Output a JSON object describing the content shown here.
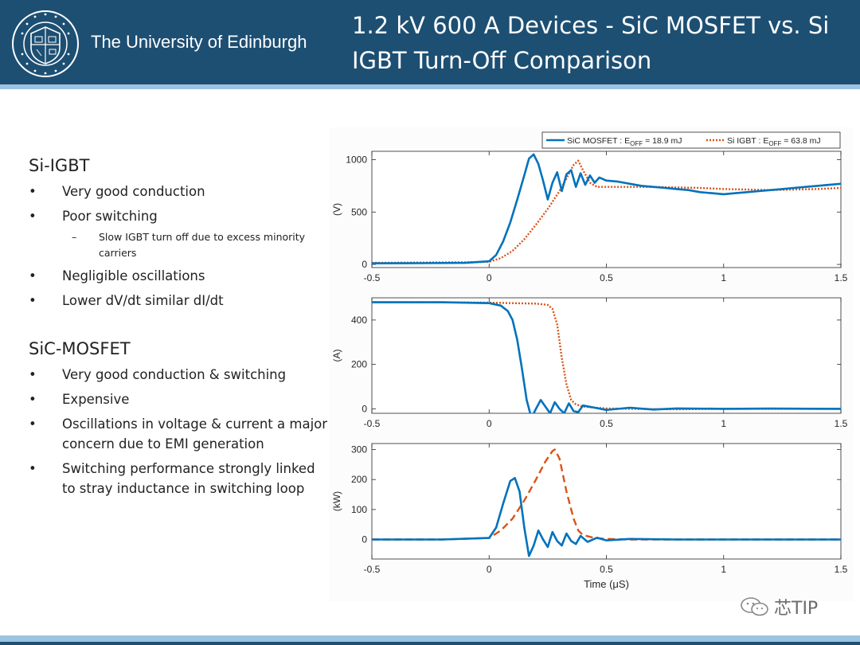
{
  "header": {
    "university": "The University of Edinburgh",
    "title": "1.2 kV 600 A Devices - SiC MOSFET vs. Si IGBT Turn-Off Comparison",
    "logo_icon": "university-crest-icon"
  },
  "left": {
    "section1": {
      "heading": "Si-IGBT",
      "items": [
        {
          "text": "Very good conduction"
        },
        {
          "text": "Poor switching",
          "sub": "Slow IGBT turn off due to excess minority carriers"
        },
        {
          "text": "Negligible oscillations"
        },
        {
          "text": "Lower dV/dt similar dI/dt"
        }
      ]
    },
    "section2": {
      "heading": "SiC-MOSFET",
      "items": [
        {
          "text": "Very good conduction & switching"
        },
        {
          "text": "Expensive"
        },
        {
          "text": "Oscillations in voltage & current a major concern due to EMI generation"
        },
        {
          "text": "Switching performance strongly linked to stray inductance in switching loop"
        }
      ]
    },
    "bullet_char": "•",
    "dash_char": "–"
  },
  "watermark": "芯TIP",
  "colors": {
    "header": "#1d4f73",
    "stripe": "#9cc3e0",
    "sic": "#0072bd",
    "si": "#d95319"
  },
  "chart_data": [
    {
      "type": "line",
      "ylabel": "(V)",
      "xlim": [
        -0.5,
        1.5
      ],
      "ylim": [
        -30,
        1080
      ],
      "yticks": [
        0,
        500,
        1000
      ],
      "xticks": [
        -0.5,
        0,
        0.5,
        1,
        1.5
      ],
      "legend": {
        "placement": "top-right",
        "entries": [
          {
            "name": "SiC MOSFET : E",
            "sub": "OFF",
            "value": " = 18.9 mJ"
          },
          {
            "name": "Si IGBT : E",
            "sub": "OFF",
            "value": " = 63.8 mJ"
          }
        ]
      },
      "series": [
        {
          "name": "SiC MOSFET",
          "style": "solid",
          "x": [
            -0.5,
            -0.3,
            -0.1,
            0,
            0.03,
            0.06,
            0.09,
            0.12,
            0.15,
            0.17,
            0.19,
            0.21,
            0.23,
            0.25,
            0.27,
            0.29,
            0.31,
            0.33,
            0.35,
            0.37,
            0.39,
            0.41,
            0.43,
            0.45,
            0.47,
            0.5,
            0.55,
            0.6,
            0.65,
            0.7,
            0.75,
            0.8,
            0.85,
            0.9,
            0.95,
            1.0,
            1.05,
            1.1,
            1.15,
            1.2,
            1.25,
            1.3,
            1.35,
            1.4,
            1.45,
            1.5
          ],
          "y": [
            10,
            12,
            15,
            30,
            90,
            220,
            400,
            620,
            850,
            1010,
            1050,
            960,
            800,
            620,
            780,
            880,
            700,
            860,
            900,
            740,
            870,
            760,
            850,
            780,
            830,
            800,
            790,
            770,
            750,
            740,
            730,
            720,
            710,
            690,
            680,
            670,
            680,
            690,
            700,
            710,
            720,
            730,
            740,
            750,
            760,
            770
          ]
        },
        {
          "name": "Si IGBT",
          "style": "dotted",
          "x": [
            -0.5,
            -0.3,
            -0.1,
            0,
            0.05,
            0.1,
            0.15,
            0.2,
            0.25,
            0.3,
            0.33,
            0.36,
            0.38,
            0.4,
            0.43,
            0.46,
            0.5,
            0.6,
            0.7,
            0.8,
            0.9,
            1.0,
            1.1,
            1.2,
            1.3,
            1.4,
            1.5
          ],
          "y": [
            15,
            18,
            20,
            25,
            60,
            130,
            240,
            380,
            530,
            700,
            820,
            950,
            990,
            900,
            780,
            740,
            740,
            740,
            740,
            735,
            730,
            720,
            715,
            710,
            715,
            720,
            730
          ]
        }
      ]
    },
    {
      "type": "line",
      "ylabel": "(A)",
      "xlim": [
        -0.5,
        1.5
      ],
      "ylim": [
        -20,
        500
      ],
      "yticks": [
        0,
        200,
        400
      ],
      "xticks": [
        -0.5,
        0,
        0.5,
        1,
        1.5
      ],
      "series": [
        {
          "name": "SiC MOSFET",
          "style": "solid",
          "x": [
            -0.5,
            -0.2,
            0,
            0.05,
            0.08,
            0.1,
            0.12,
            0.14,
            0.16,
            0.18,
            0.2,
            0.22,
            0.24,
            0.26,
            0.28,
            0.3,
            0.32,
            0.34,
            0.36,
            0.38,
            0.4,
            0.45,
            0.5,
            0.6,
            0.7,
            0.8,
            1.0,
            1.2,
            1.5
          ],
          "y": [
            480,
            480,
            476,
            465,
            440,
            400,
            310,
            180,
            40,
            -40,
            0,
            40,
            10,
            -20,
            30,
            0,
            -20,
            25,
            -10,
            -15,
            15,
            5,
            -5,
            5,
            -3,
            2,
            0,
            1,
            0
          ]
        },
        {
          "name": "Si IGBT",
          "style": "dotted",
          "x": [
            -0.5,
            -0.2,
            0,
            0.1,
            0.2,
            0.25,
            0.27,
            0.29,
            0.31,
            0.33,
            0.35,
            0.37,
            0.4,
            0.45,
            0.5,
            0.6,
            0.8,
            1.0,
            1.2,
            1.5
          ],
          "y": [
            480,
            480,
            478,
            476,
            474,
            468,
            450,
            380,
            230,
            110,
            40,
            20,
            10,
            5,
            2,
            0,
            -2,
            0,
            0,
            0
          ]
        }
      ]
    },
    {
      "type": "line",
      "ylabel": "(kW)",
      "xlabel": "Time (μS)",
      "xlim": [
        -0.5,
        1.5
      ],
      "ylim": [
        -65,
        320
      ],
      "yticks": [
        0,
        100,
        200,
        300
      ],
      "xticks": [
        -0.5,
        0,
        0.5,
        1,
        1.5
      ],
      "series": [
        {
          "name": "SiC MOSFET",
          "style": "solid",
          "x": [
            -0.5,
            -0.2,
            0,
            0.03,
            0.06,
            0.09,
            0.11,
            0.13,
            0.15,
            0.17,
            0.19,
            0.21,
            0.23,
            0.25,
            0.27,
            0.29,
            0.31,
            0.33,
            0.35,
            0.37,
            0.39,
            0.42,
            0.46,
            0.5,
            0.6,
            0.8,
            1.0,
            1.2,
            1.5
          ],
          "y": [
            0,
            0,
            5,
            40,
            120,
            195,
            205,
            160,
            40,
            -55,
            -20,
            30,
            0,
            -25,
            25,
            -5,
            -20,
            20,
            -5,
            -15,
            12,
            -8,
            6,
            -3,
            2,
            0,
            0,
            0,
            0
          ]
        },
        {
          "name": "Si IGBT",
          "style": "dashed",
          "x": [
            -0.5,
            -0.2,
            0,
            0.05,
            0.1,
            0.15,
            0.2,
            0.24,
            0.27,
            0.28,
            0.3,
            0.33,
            0.36,
            0.38,
            0.4,
            0.45,
            0.5,
            0.6,
            0.8,
            1.0,
            1.2,
            1.5
          ],
          "y": [
            0,
            0,
            5,
            30,
            70,
            130,
            200,
            260,
            295,
            300,
            270,
            160,
            70,
            30,
            15,
            5,
            2,
            0,
            0,
            0,
            0,
            0
          ]
        }
      ]
    }
  ]
}
